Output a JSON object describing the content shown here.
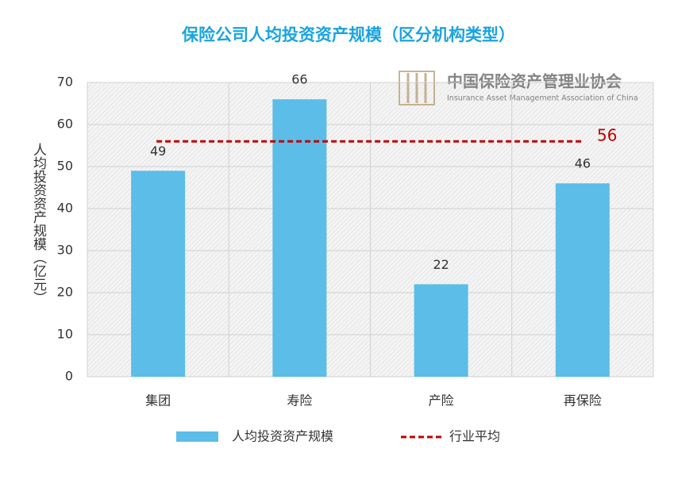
{
  "chart_data": {
    "type": "bar",
    "title": "保险公司人均投资资产规模（区分机构类型）",
    "y_label": "人均投资资产规模（亿元）",
    "categories": [
      "集团",
      "寿险",
      "产险",
      "再保险"
    ],
    "series": [
      {
        "name": "人均投资资产规模",
        "color": "#5bbde8",
        "values": [
          49,
          66,
          22,
          46
        ]
      }
    ],
    "average": {
      "name": "行业平均",
      "color": "#c00000",
      "value": 56
    },
    "ylim": [
      0,
      70
    ],
    "yticks": [
      0,
      10,
      20,
      30,
      40,
      50,
      60,
      70
    ],
    "grid": true
  },
  "watermark": {
    "cn": "中国保险资产管理业协会",
    "en": "Insurance Asset Management Association of China"
  }
}
